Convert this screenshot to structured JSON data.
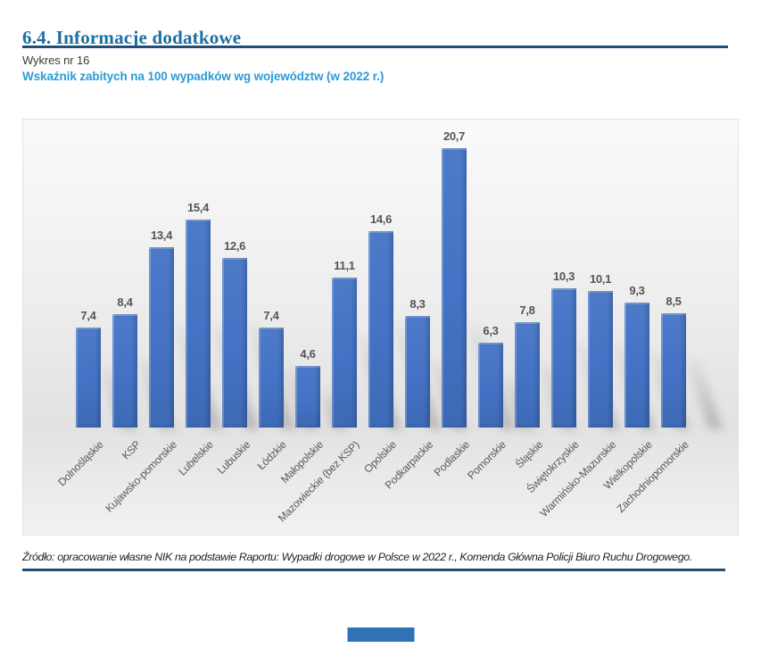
{
  "page": {
    "section_title": "6.4. Informacje dodatkowe",
    "figure_label": "Wykres nr 16",
    "figure_title": "Wskaźnik zabitych na 100 wypadków wg województw (w 2022 r.)",
    "source": "Źródło: opracowanie własne NIK na podstawie Raportu: Wypadki drogowe w Polsce w 2022 r., Komenda Główna Policji Biuro Ruchu Drogowego."
  },
  "colors": {
    "section_title": "#1C6EA4",
    "rule": "#1F4E79",
    "figure_title": "#2E9BD6",
    "bar": "#4472C4",
    "value_label": "#545454",
    "axis_label": "#595959",
    "footer_bar": "#2E73B8"
  },
  "chart_data": {
    "type": "bar",
    "title": "Wskaźnik zabitych na 100 wypadków wg województw (w 2022 r.)",
    "categories": [
      "Dolnośląskie",
      "KSP",
      "Kujawsko-pomorskie",
      "Lubelskie",
      "Lubuskie",
      "Łódzkie",
      "Małopolskie",
      "Mazowieckie (bez KSP)",
      "Opolskie",
      "Podkarpackie",
      "Podlaskie",
      "Pomorskie",
      "Śląskie",
      "Świętokrzyskie",
      "Warmińsko-Mazurskie",
      "Wielkopolskie",
      "Zachodniopomorskie"
    ],
    "values": [
      7.4,
      8.4,
      13.4,
      15.4,
      12.6,
      7.4,
      4.6,
      11.1,
      14.6,
      8.3,
      20.7,
      6.3,
      7.8,
      10.3,
      10.1,
      9.3,
      8.5
    ],
    "value_labels": [
      "7,4",
      "8,4",
      "13,4",
      "15,4",
      "12,6",
      "7,4",
      "4,6",
      "11,1",
      "14,6",
      "8,3",
      "20,7",
      "6,3",
      "7,8",
      "10,3",
      "10,1",
      "9,3",
      "8,5"
    ],
    "xlabel": "",
    "ylabel": "",
    "ylim": [
      0,
      23
    ],
    "grid": false,
    "legend": false,
    "data_labels": true,
    "label_rotation_deg": 45,
    "bar_color": "#4472C4"
  }
}
